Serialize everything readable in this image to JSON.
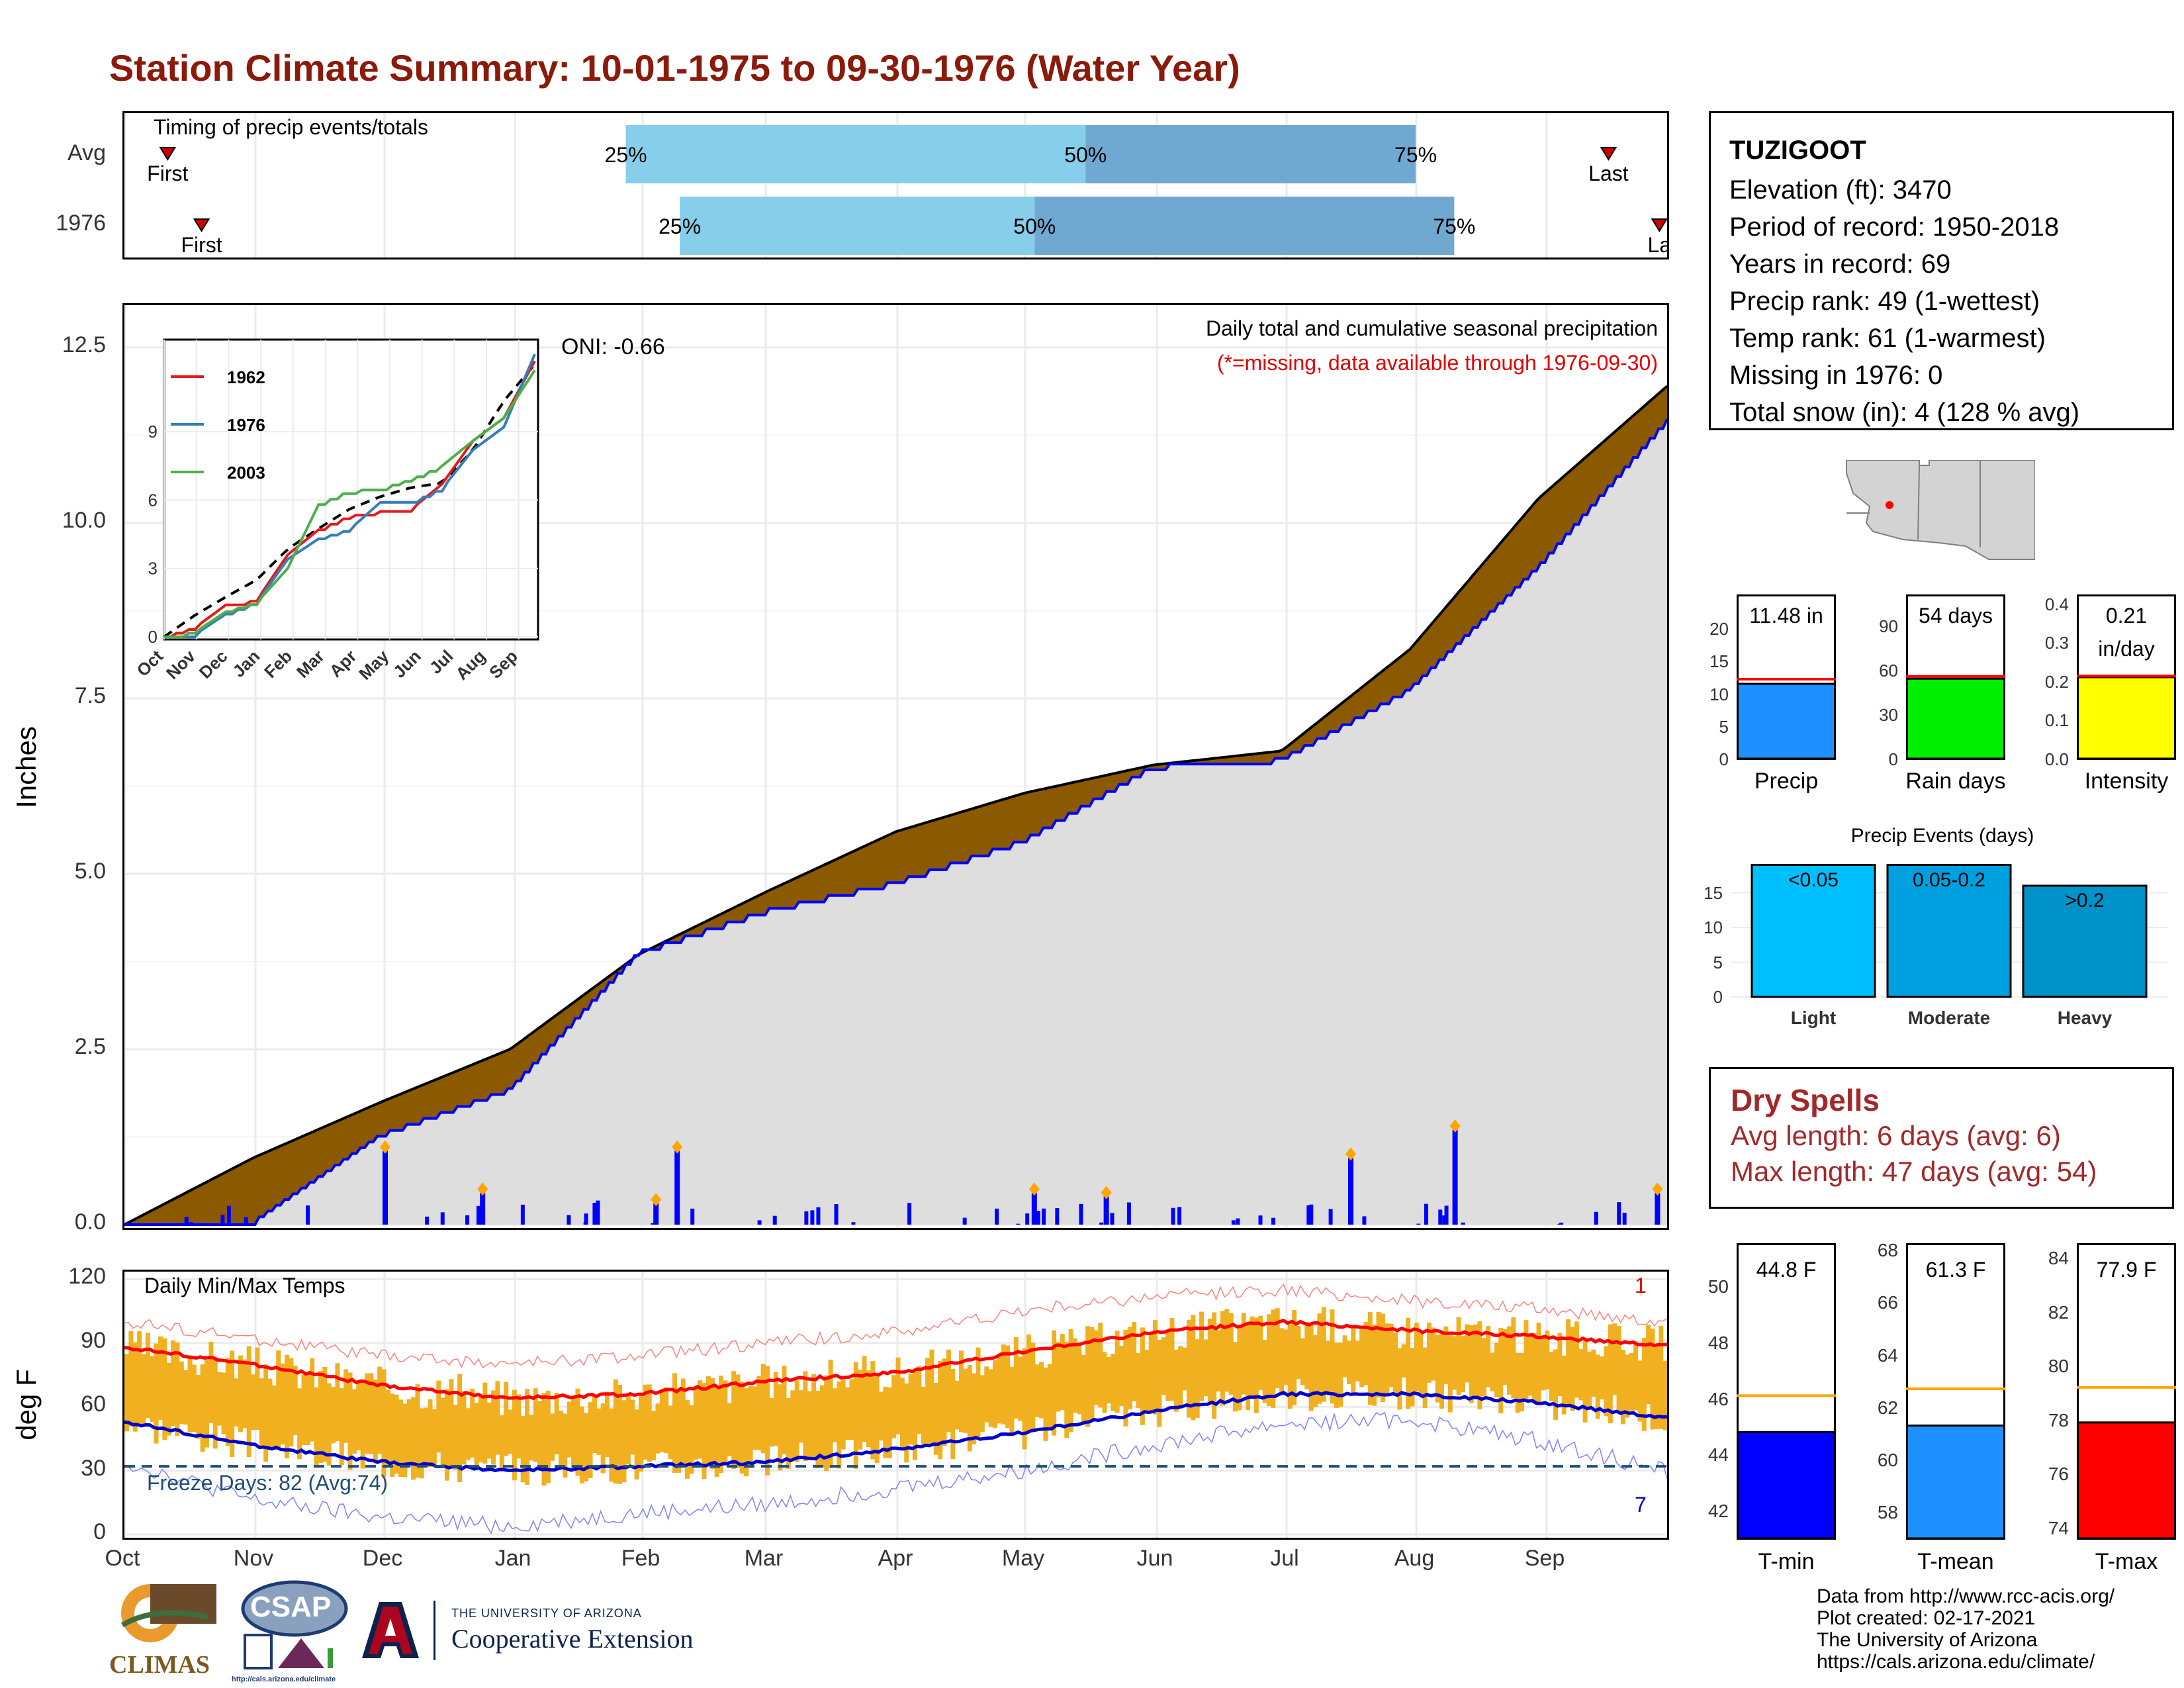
{
  "title": "Station Climate Summary: 10-01-1975 to 09-30-1976 (Water Year)",
  "timing": {
    "label": "Timing of precip events/totals",
    "rows": [
      {
        "name": "Avg",
        "first_label": "First",
        "last_label": "Last",
        "first_frac": 0.028,
        "p25": 0.325,
        "p50": 0.623,
        "p75": 0.837,
        "last_frac": 0.962,
        "labels": [
          "25%",
          "50%",
          "75%"
        ]
      },
      {
        "name": "1976",
        "first_label": "First",
        "last_label": "La",
        "first_frac": 0.05,
        "p25": 0.36,
        "p50": 0.59,
        "p75": 0.862,
        "last_frac": 0.995,
        "labels": [
          "25%",
          "50%",
          "75%"
        ]
      }
    ]
  },
  "precip": {
    "ylabel": "Inches",
    "yticks": [
      "0.0",
      "2.5",
      "5.0",
      "7.5",
      "10.0",
      "12.5"
    ],
    "caption1": "Daily total and cumulative seasonal precipitation",
    "caption2": "(*=missing, data available through 1976-09-30)",
    "oni": "ONI: -0.66",
    "inset": {
      "legend": [
        "1962",
        "1976",
        "2003"
      ],
      "legend_colors": [
        "#e41a1c",
        "#377eb8",
        "#4daf4a"
      ],
      "yticks": [
        "0",
        "3",
        "6",
        "9"
      ],
      "xticks": [
        "Oct",
        "Nov",
        "Dec",
        "Jan",
        "Feb",
        "Mar",
        "Apr",
        "May",
        "Jun",
        "Jul",
        "Aug",
        "Sep"
      ]
    }
  },
  "temp": {
    "ylabel": "deg F",
    "label": "Daily Min/Max Temps",
    "yticks": [
      "0",
      "30",
      "60",
      "90",
      "120"
    ],
    "freeze": "Freeze Days: 82 (Avg:74)",
    "record_high_count": "1",
    "record_low_count": "7"
  },
  "months": [
    "Oct",
    "Nov",
    "Dec",
    "Jan",
    "Feb",
    "Mar",
    "Apr",
    "May",
    "Jun",
    "Jul",
    "Aug",
    "Sep"
  ],
  "station": {
    "name": "TUZIGOOT",
    "lines": [
      "Elevation (ft): 3470",
      "Period of record: 1950-2018",
      "Years in record: 69",
      "Precip rank: 49 (1-wettest)",
      "Temp rank: 61 (1-warmest)",
      "Missing in 1976: 0",
      "Total snow (in): 4 (128 % avg)"
    ]
  },
  "mini_bars": [
    {
      "label": "Precip",
      "value_label": "11.48 in",
      "value": 11.48,
      "avg": 12.2,
      "ymax": 25,
      "ticks": [
        "0",
        "5",
        "10",
        "15",
        "20"
      ],
      "color": "#1e90ff"
    },
    {
      "label": "Rain days",
      "value_label": "54 days",
      "value": 54,
      "avg": 55.5,
      "ymax": 110,
      "ticks": [
        "0",
        "30",
        "60",
        "90"
      ],
      "color": "#00ee00"
    },
    {
      "label": "Intensity",
      "value_label": "0.21",
      "value_label2": "in/day",
      "value": 0.21,
      "avg": 0.213,
      "ymax": 0.42,
      "ticks": [
        "0.0",
        "0.1",
        "0.2",
        "0.3",
        "0.4"
      ],
      "color": "#ffff00"
    }
  ],
  "events": {
    "title": "Precip Events (days)",
    "ticks": [
      "0",
      "5",
      "10",
      "15"
    ],
    "bars": [
      {
        "label": "Light",
        "value_label": "<0.05",
        "value": 19,
        "color": "#00bfff"
      },
      {
        "label": "Moderate",
        "value_label": "0.05-0.2",
        "value": 19,
        "color": "#00a0e0"
      },
      {
        "label": "Heavy",
        "value_label": ">0.2",
        "value": 16,
        "color": "#0092c8"
      }
    ]
  },
  "dry_spells": {
    "title": "Dry Spells",
    "avg_length": "Avg length: 6 days (avg: 6)",
    "max_length": "Max length: 47 days (avg: 54)"
  },
  "temp_bars": [
    {
      "label": "T-min",
      "value_label": "44.8 F",
      "value": 44.8,
      "avg": 46.1,
      "ymin": 41,
      "ymax": 51.5,
      "ticks": [
        "42",
        "44",
        "46",
        "48",
        "50"
      ],
      "color": "#0000ff"
    },
    {
      "label": "T-mean",
      "value_label": "61.3 F",
      "value": 61.3,
      "avg": 62.7,
      "ymin": 57,
      "ymax": 68.2,
      "ticks": [
        "58",
        "60",
        "62",
        "64",
        "66",
        "68"
      ],
      "color": "#1e90ff"
    },
    {
      "label": "T-max",
      "value_label": "77.9 F",
      "value": 77.9,
      "avg": 79.2,
      "ymin": 73.6,
      "ymax": 84.5,
      "ticks": [
        "74",
        "76",
        "78",
        "80",
        "82",
        "84"
      ],
      "color": "#ff0000"
    }
  ],
  "footer": {
    "lines": [
      "Data from http://www.rcc-acis.org/",
      "Plot created: 02-17-2021",
      "The University of Arizona",
      "https://cals.arizona.edu/climate/"
    ],
    "climas": "CLIMAS",
    "csap": "CSAP",
    "csap_url": "http://cals.arizona.edu/climate",
    "ua_small": "THE UNIVERSITY OF ARIZONA",
    "ua_big": "Cooperative Extension"
  },
  "chart_data": [
    {
      "type": "area",
      "title": "Daily total and cumulative seasonal precipitation",
      "ylabel": "Inches",
      "ylim": [
        0,
        13.1
      ],
      "x": [
        "Oct",
        "Nov",
        "Dec",
        "Jan",
        "Feb",
        "Mar",
        "Apr",
        "May",
        "Jun",
        "Jul",
        "Aug",
        "Sep",
        "Sep-30"
      ],
      "series": [
        {
          "values": [
            0.0,
            0.95,
            1.75,
            2.5,
            3.85,
            4.75,
            5.6,
            6.15,
            6.55,
            6.75,
            8.2,
            10.35,
            11.95
          ]
        },
        {
          "values": [
            0.0,
            0.05,
            1.3,
            1.95,
            3.9,
            4.5,
            4.9,
            5.5,
            6.55,
            6.65,
            7.65,
            9.4,
            11.48
          ]
        }
      ],
      "daily_events": [
        {
          "x": "Dec-01",
          "y": 1.05
        },
        {
          "x": "Dec-24",
          "y": 0.45
        },
        {
          "x": "Feb-04",
          "y": 0.3
        },
        {
          "x": "Feb-09",
          "y": 1.05
        },
        {
          "x": "May-03",
          "y": 0.45
        },
        {
          "x": "May-20",
          "y": 0.4
        },
        {
          "x": "Jul-16",
          "y": 0.95
        },
        {
          "x": "Aug-10",
          "y": 1.35
        },
        {
          "x": "Sep-27",
          "y": 0.45
        }
      ]
    },
    {
      "type": "line",
      "title": "Daily Min/Max Temps",
      "ylabel": "deg F",
      "ylim": [
        0,
        122
      ],
      "x": [
        "Oct",
        "Nov",
        "Dec",
        "Jan",
        "Feb",
        "Mar",
        "Apr",
        "May",
        "Jun",
        "Jul",
        "Aug",
        "Sep",
        "Sep-30"
      ],
      "series": [
        {
          "name": "avg max",
          "values": [
            88,
            80,
            70,
            64,
            66,
            72,
            76,
            86,
            95,
            100,
            96,
            93,
            89
          ]
        },
        {
          "name": "avg min",
          "values": [
            53,
            42,
            34,
            30,
            32,
            34,
            40,
            48,
            58,
            66,
            66,
            62,
            55
          ]
        },
        {
          "name": "record high",
          "values": [
            100,
            92,
            84,
            80,
            84,
            90,
            95,
            105,
            112,
            115,
            110,
            106,
            100
          ]
        },
        {
          "name": "record low",
          "values": [
            34,
            16,
            8,
            4,
            10,
            14,
            22,
            30,
            42,
            52,
            54,
            44,
            30
          ]
        }
      ],
      "freeze_line": 32
    }
  ]
}
